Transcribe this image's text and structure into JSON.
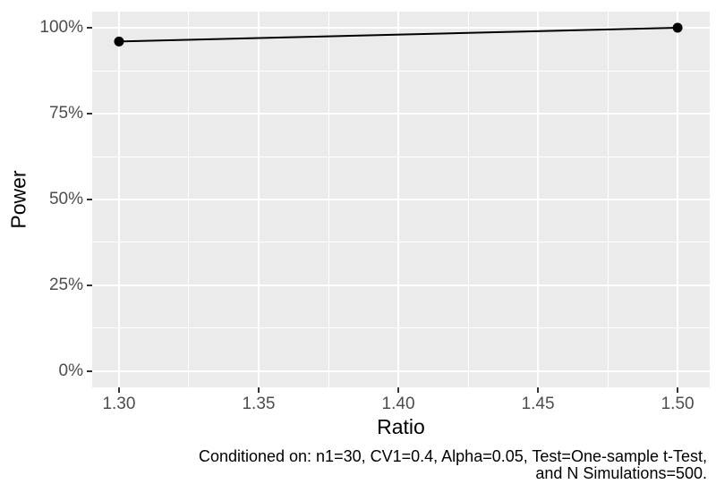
{
  "chart_data": {
    "type": "line",
    "title": "",
    "xlabel": "Ratio",
    "ylabel": "Power",
    "points": [
      {
        "x": 1.3,
        "y_percent": 96
      },
      {
        "x": 1.5,
        "y_percent": 100
      }
    ],
    "x_tick_values": [
      1.3,
      1.35,
      1.4,
      1.45,
      1.5
    ],
    "x_tick_labels": [
      "1.30",
      "1.35",
      "1.40",
      "1.45",
      "1.50"
    ],
    "x_minor_values": [
      1.325,
      1.375,
      1.425,
      1.475
    ],
    "y_tick_values": [
      0,
      25,
      50,
      75,
      100
    ],
    "y_tick_labels": [
      "0%",
      "25%",
      "50%",
      "75%",
      "100%"
    ],
    "y_minor_values": [
      12.5,
      37.5,
      62.5,
      87.5
    ],
    "xlim": [
      1.2904,
      1.5115
    ],
    "ylim_percent": [
      -4.69,
      104.69
    ],
    "grid": true,
    "legend": "none",
    "caption_line1": "Conditioned on: n1=30, CV1=0.4, Alpha=0.05, Test=One-sample t-Test,",
    "caption_line2": "and N Simulations=500.",
    "colors": {
      "panel_background": "#EBEBEB",
      "gridline": "#FFFFFF",
      "series_line": "#000000",
      "point": "#000000",
      "tick_mark": "#333333",
      "tick_label": "#4D4D4D",
      "axis_title": "#000000",
      "caption": "#000000"
    }
  }
}
